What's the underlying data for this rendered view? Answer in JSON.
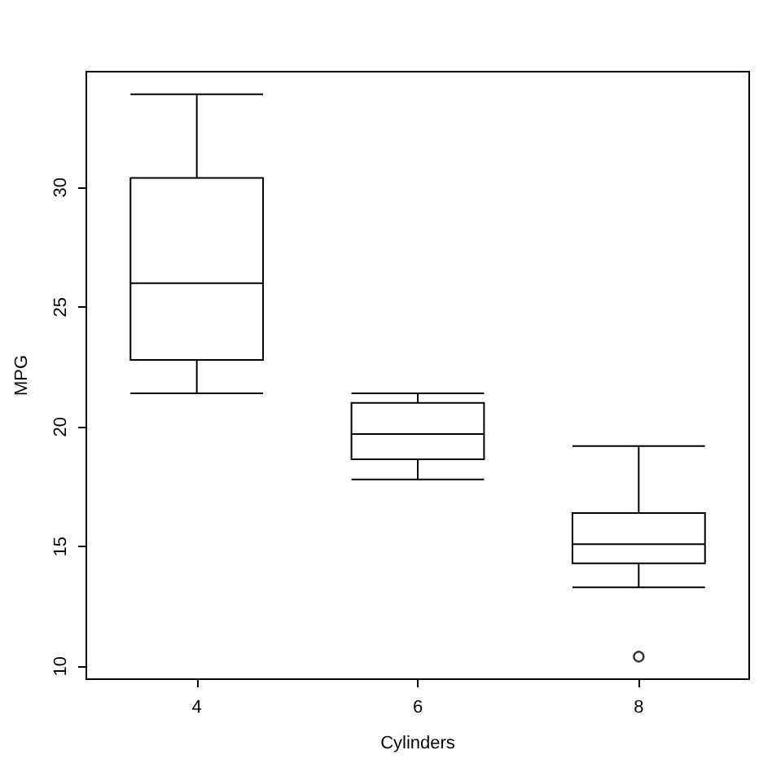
{
  "chart_data": {
    "type": "box",
    "xlabel": "Cylinders",
    "ylabel": "MPG",
    "categories": [
      "4",
      "6",
      "8"
    ],
    "color": "#000000",
    "boxes": [
      {
        "low": 21.4,
        "q1": 22.8,
        "median": 26.0,
        "q3": 30.4,
        "high": 33.9
      },
      {
        "low": 17.8,
        "q1": 18.65,
        "median": 19.7,
        "q3": 21.0,
        "high": 21.4
      },
      {
        "low": 13.3,
        "q1": 14.3,
        "median": 15.1,
        "q3": 16.4,
        "high": 19.2,
        "outliers": [
          10.4
        ]
      }
    ],
    "ylim": [
      9.46,
      34.84
    ],
    "yticks": [
      10,
      15,
      20,
      25,
      30
    ]
  }
}
